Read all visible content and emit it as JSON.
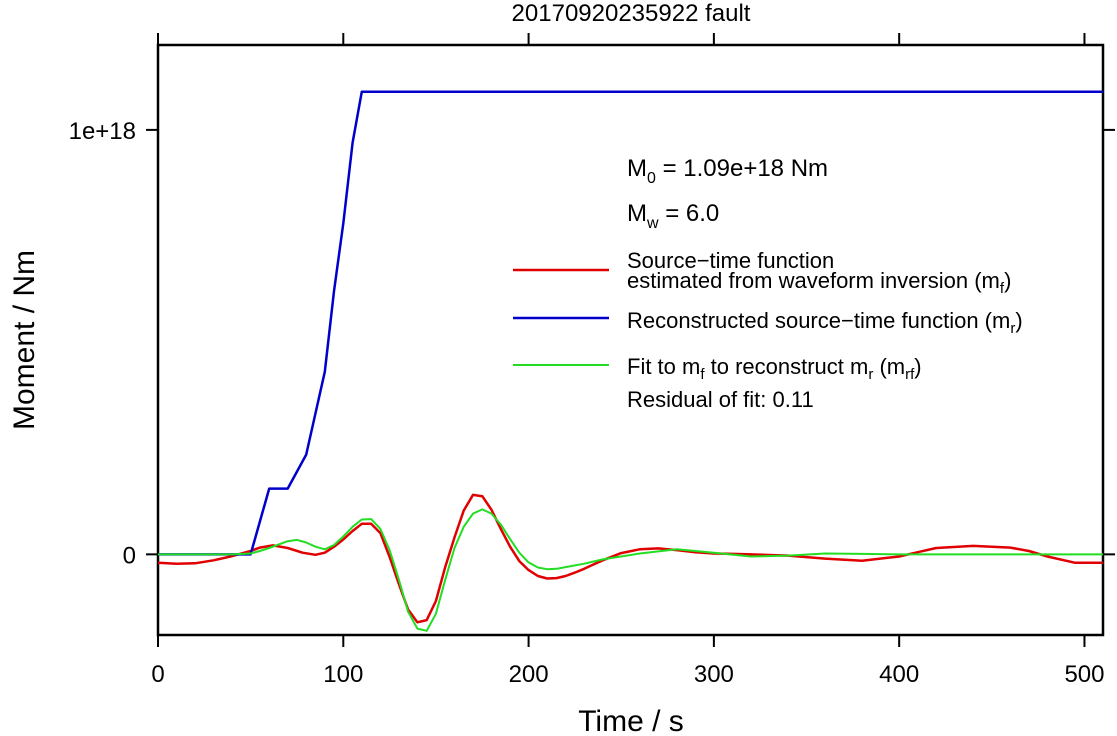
{
  "chart_data": {
    "type": "line",
    "title": "20170920235922 fault",
    "xlabel": "Time / s",
    "ylabel": "Moment / Nm",
    "xlim": [
      0,
      510
    ],
    "ylim": [
      -1.9e+17,
      1.2e+18
    ],
    "xticks": [
      0,
      100,
      200,
      300,
      400,
      500
    ],
    "xtick_labels": [
      "0",
      "100",
      "200",
      "300",
      "400",
      "500"
    ],
    "yticks": [
      0,
      1e+18
    ],
    "ytick_labels": [
      "0",
      "1e+18"
    ],
    "grid": false,
    "legend_position": "right",
    "annotations": {
      "m0": "M0 = 1.09e+18 Nm",
      "mw": "Mw = 6.0",
      "residual": "Residual of fit: 0.11"
    },
    "series": [
      {
        "name": "Source−time function estimated from waveform inversion (mf)",
        "color": "#e00000",
        "x": [
          0,
          10,
          20,
          30,
          40,
          50,
          55,
          62,
          70,
          78,
          85,
          90,
          95,
          100,
          105,
          110,
          115,
          120,
          125,
          130,
          135,
          140,
          145,
          150,
          155,
          160,
          165,
          170,
          175,
          180,
          185,
          190,
          195,
          200,
          205,
          210,
          215,
          220,
          225,
          230,
          235,
          240,
          250,
          260,
          270,
          280,
          290,
          300,
          310,
          320,
          340,
          360,
          380,
          400,
          410,
          420,
          440,
          460,
          470,
          480,
          495,
          510
        ],
        "y": [
          -2e+16,
          -2.2e+16,
          -2.1e+16,
          -1.4e+16,
          -4000000000000000.0,
          8000000000000000.0,
          1.6e+16,
          2.1e+16,
          1.5e+16,
          4000000000000000.0,
          -1000000000000000.0,
          4000000000000000.0,
          1.8e+16,
          3.5e+16,
          5.5e+16,
          7.2e+16,
          7.2e+16,
          5e+16,
          -6000000000000000.0,
          -7e+16,
          -1.3e+17,
          -1.6e+17,
          -1.55e+17,
          -1.1e+17,
          -3e+16,
          4e+16,
          1.03e+17,
          1.4e+17,
          1.37e+17,
          1.05e+17,
          6e+16,
          1.8e+16,
          -1.6e+16,
          -3.7e+16,
          -5.1e+16,
          -5.7e+16,
          -5.6e+16,
          -5.1e+16,
          -4.3e+16,
          -3.4e+16,
          -2.4e+16,
          -1.4e+16,
          3000000000000000.0,
          1.2e+16,
          1.4e+16,
          1e+16,
          5000000000000000.0,
          2000000000000000.0,
          1000000000000000.0,
          0,
          -3000000000000000.0,
          -1e+16,
          -1.5e+16,
          -5000000000000000.0,
          5000000000000000.0,
          1.5e+16,
          2e+16,
          1.6e+16,
          8000000000000000.0,
          -5000000000000000.0,
          -2e+16,
          -2e+16
        ]
      },
      {
        "name": "Reconstructed source−time function (mr)",
        "color": "#0000cc",
        "x": [
          0,
          50,
          60,
          70,
          80,
          90,
          95,
          100,
          105,
          110,
          510
        ],
        "y": [
          0,
          0,
          1.55e+17,
          1.55e+17,
          2.35e+17,
          4.3e+17,
          6.2e+17,
          7.8e+17,
          9.7e+17,
          1.09e+18,
          1.09e+18
        ]
      },
      {
        "name": "Fit to mf to reconstruct mr (mrf)",
        "color": "#22dd22",
        "x": [
          0,
          40,
          50,
          55,
          60,
          65,
          70,
          75,
          80,
          85,
          90,
          95,
          100,
          105,
          110,
          115,
          120,
          125,
          130,
          135,
          140,
          145,
          150,
          155,
          160,
          165,
          170,
          175,
          180,
          185,
          190,
          195,
          200,
          205,
          210,
          215,
          220,
          230,
          240,
          260,
          280,
          300,
          320,
          340,
          360,
          380,
          400,
          420,
          440,
          460,
          480,
          510
        ],
        "y": [
          0,
          0,
          2000000000000000.0,
          8000000000000000.0,
          1.5e+16,
          2.3e+16,
          3.1e+16,
          3.4e+16,
          2.8e+16,
          1.8e+16,
          1.2e+16,
          2.2e+16,
          4.2e+16,
          6.5e+16,
          8.2e+16,
          8.3e+16,
          6e+16,
          1e+16,
          -6e+16,
          -1.35e+17,
          -1.75e+17,
          -1.8e+17,
          -1.4e+17,
          -6e+16,
          1.5e+16,
          6.5e+16,
          9.6e+16,
          1.06e+17,
          9.6e+16,
          7e+16,
          3.6e+16,
          4000000000000000.0,
          -1.9e+16,
          -3.1e+16,
          -3.5e+16,
          -3.4e+16,
          -3e+16,
          -2.2e+16,
          -1.2e+16,
          2000000000000000.0,
          1.2e+16,
          4000000000000000.0,
          -5000000000000000.0,
          -3000000000000000.0,
          2000000000000000.0,
          1000000000000000.0,
          0,
          0,
          0,
          0,
          0,
          0
        ]
      }
    ],
    "legend_entries": [
      {
        "line1": "Source−time function",
        "line2": "estimated from waveform inversion (m",
        "sub": "f",
        "tail": ")",
        "color": "#e00000"
      },
      {
        "line1": "Reconstructed source−time function (m",
        "sub": "r",
        "tail": ")",
        "color": "#0000cc"
      },
      {
        "line1": "Fit to m",
        "sub1": "f",
        "mid": " to reconstruct m",
        "sub2": "r",
        "mid2": " (m",
        "sub3": "rf",
        "tail": ")",
        "color": "#22dd22"
      }
    ]
  }
}
